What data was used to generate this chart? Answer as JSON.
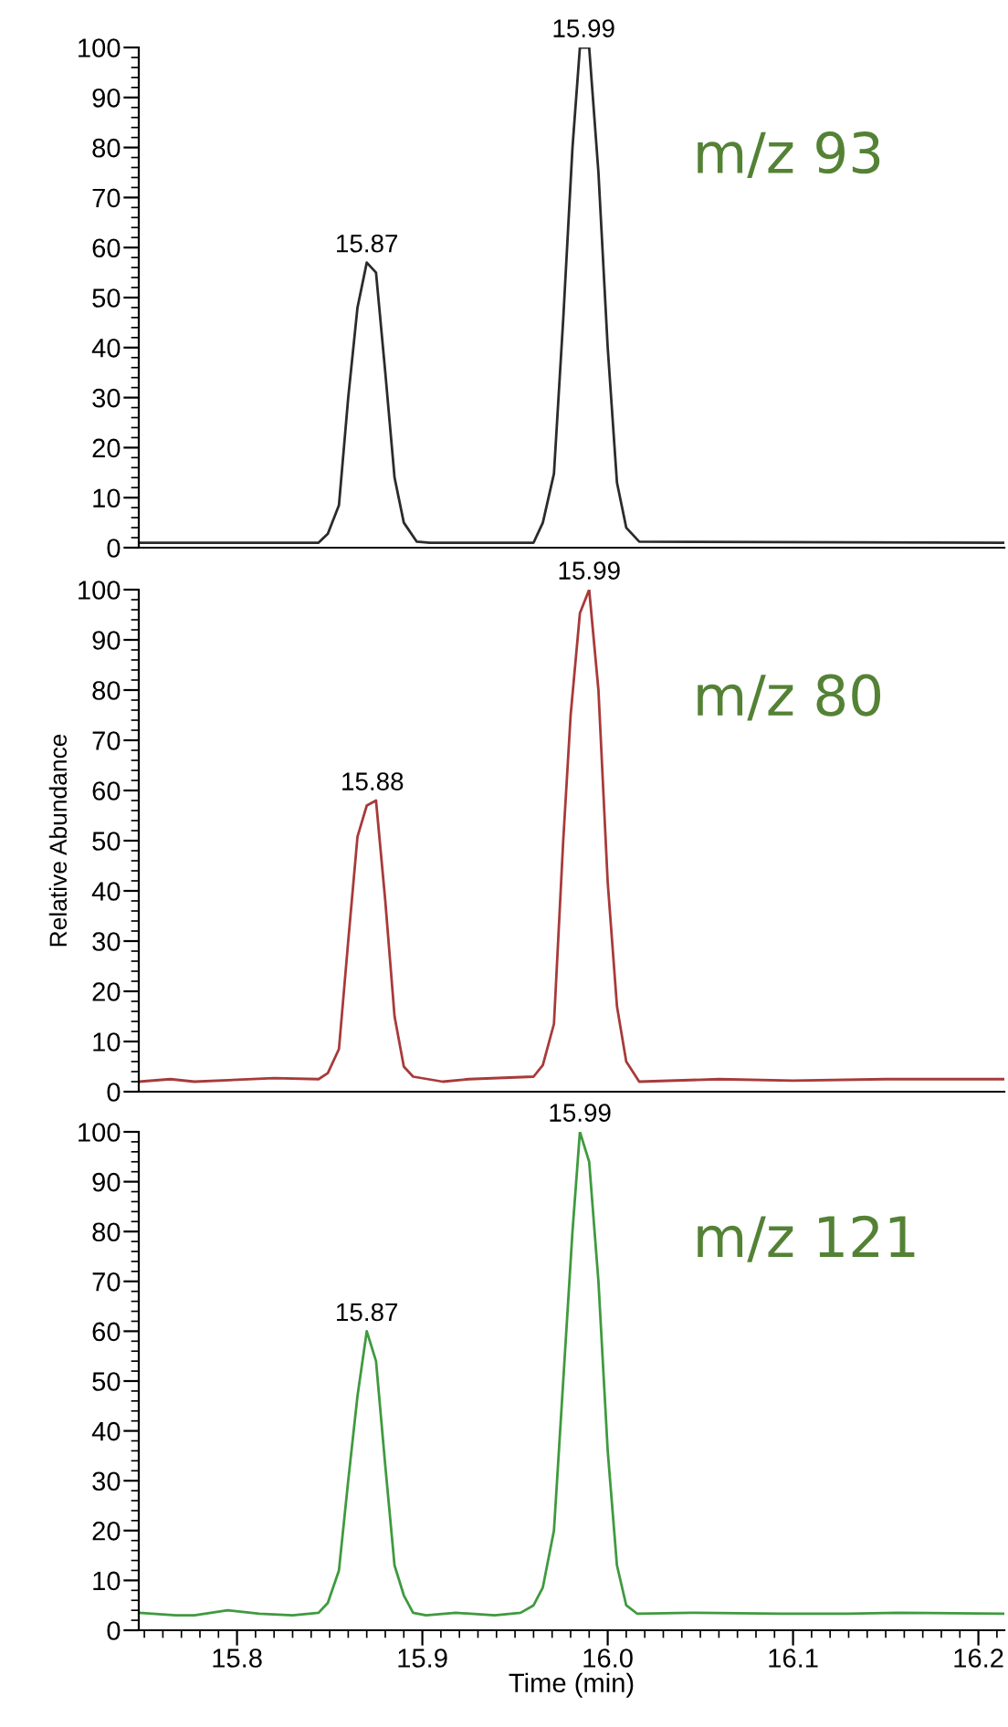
{
  "chart_data": [
    {
      "type": "line",
      "xlim": [
        15.747,
        16.214
      ],
      "ylim": [
        0,
        100
      ],
      "yticks": [
        0,
        10,
        20,
        30,
        40,
        50,
        60,
        70,
        80,
        90,
        100
      ],
      "tick_labels": "y",
      "grid": false,
      "legend": false,
      "marker": "none",
      "line_style": "solid",
      "annotations": [
        {
          "text": "15.87",
          "x": 15.87,
          "y": 57
        },
        {
          "text": "15.99",
          "x": 15.987,
          "y": 100
        },
        "m/z 93"
      ],
      "series": [
        {
          "color": "#2b2b2b",
          "x": [
            15.747,
            15.844,
            15.849,
            15.855,
            15.86,
            15.865,
            15.87,
            15.875,
            15.88,
            15.885,
            15.89,
            15.897,
            15.904,
            15.96,
            15.965,
            15.971,
            15.976,
            15.981,
            15.985,
            15.99,
            15.995,
            16.0,
            16.005,
            16.01,
            16.017,
            16.214
          ],
          "values": [
            1,
            1,
            2.8,
            8.5,
            30,
            48,
            57,
            55,
            35,
            14,
            5,
            1.2,
            1,
            1,
            5,
            14.8,
            45.7,
            80,
            100,
            100,
            75,
            40,
            13,
            4,
            1.2,
            1
          ]
        }
      ]
    },
    {
      "type": "line",
      "xlim": [
        15.747,
        16.214
      ],
      "ylim": [
        0,
        100
      ],
      "yticks": [
        0,
        10,
        20,
        30,
        40,
        50,
        60,
        70,
        80,
        90,
        100
      ],
      "tick_labels": "y",
      "ylabel": "Relative Abundance",
      "grid": false,
      "legend": false,
      "marker": "none",
      "line_style": "solid",
      "annotations": [
        {
          "text": "15.88",
          "x": 15.873,
          "y": 58
        },
        {
          "text": "15.99",
          "x": 15.99,
          "y": 100
        },
        "m/z 80"
      ],
      "series": [
        {
          "color": "#a83a3a",
          "x": [
            15.747,
            15.764,
            15.777,
            15.82,
            15.844,
            15.849,
            15.855,
            15.86,
            15.865,
            15.87,
            15.875,
            15.88,
            15.885,
            15.89,
            15.895,
            15.911,
            15.925,
            15.96,
            15.965,
            15.971,
            15.976,
            15.98,
            15.985,
            15.99,
            15.995,
            16.0,
            16.005,
            16.01,
            16.017,
            16.06,
            16.1,
            16.15,
            16.214
          ],
          "values": [
            2,
            2.5,
            2,
            2.7,
            2.5,
            3.7,
            8.5,
            30,
            50.8,
            57,
            58,
            38,
            15,
            5,
            3,
            2,
            2.5,
            3,
            5.3,
            13.5,
            50,
            75,
            95.3,
            100,
            80,
            41.7,
            17,
            6,
            2,
            2.5,
            2.2,
            2.5,
            2.5
          ]
        }
      ]
    },
    {
      "type": "line",
      "xlim": [
        15.747,
        16.214
      ],
      "ylim": [
        0,
        100
      ],
      "xticks": [
        15.8,
        15.9,
        {
          "value": 16,
          "label": "16.0"
        },
        16.1,
        16.2
      ],
      "yticks": [
        0,
        10,
        20,
        30,
        40,
        50,
        60,
        70,
        80,
        90,
        100
      ],
      "xlabel": "Time (min)",
      "grid": false,
      "legend": false,
      "marker": "none",
      "line_style": "solid",
      "annotations": [
        {
          "text": "15.87",
          "x": 15.87,
          "y": 60
        },
        {
          "text": "15.99",
          "x": 15.985,
          "y": 100
        },
        "m/z 121"
      ],
      "series": [
        {
          "color": "#3f9a3f",
          "x": [
            15.747,
            15.767,
            15.777,
            15.795,
            15.812,
            15.83,
            15.844,
            15.849,
            15.855,
            15.86,
            15.865,
            15.87,
            15.875,
            15.88,
            15.885,
            15.89,
            15.895,
            15.902,
            15.918,
            15.939,
            15.953,
            15.96,
            15.965,
            15.971,
            15.976,
            15.981,
            15.985,
            15.99,
            15.995,
            16.0,
            16.005,
            16.01,
            16.016,
            16.045,
            16.094,
            16.129,
            16.157,
            16.214
          ],
          "values": [
            3.5,
            3,
            3,
            4,
            3.3,
            3,
            3.5,
            5.5,
            12,
            30,
            47,
            60,
            54,
            33,
            13,
            7,
            3.5,
            3,
            3.5,
            3,
            3.5,
            5,
            8.6,
            20,
            50,
            80,
            100,
            94,
            70,
            36,
            13,
            5,
            3.3,
            3.5,
            3.3,
            3.3,
            3.5,
            3.3
          ]
        }
      ]
    }
  ]
}
